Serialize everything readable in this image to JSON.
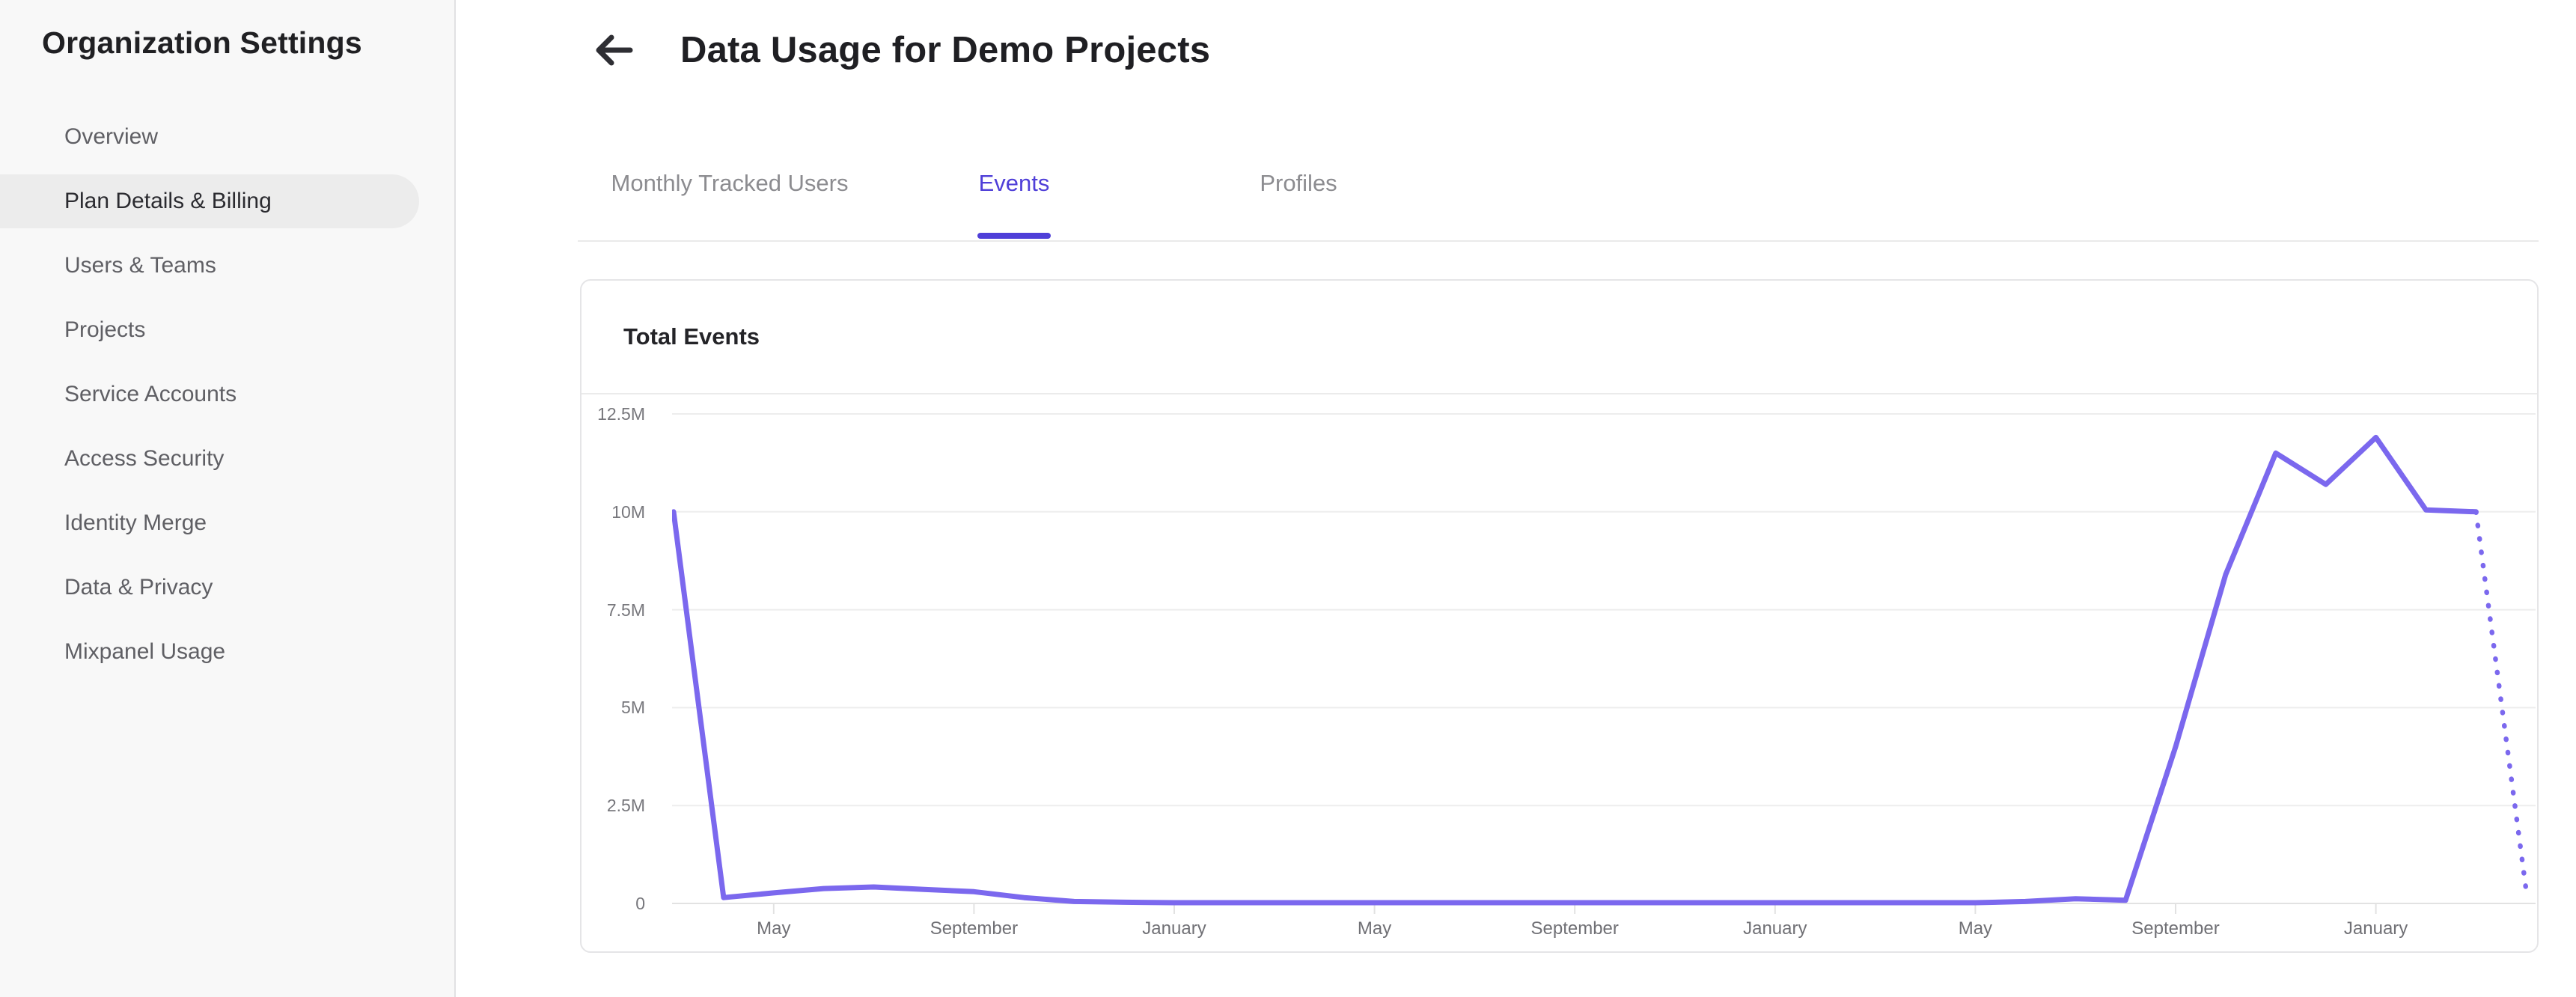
{
  "sidebar": {
    "title": "Organization Settings",
    "items": [
      {
        "label": "Overview",
        "active": false
      },
      {
        "label": "Plan Details & Billing",
        "active": true
      },
      {
        "label": "Users & Teams",
        "active": false
      },
      {
        "label": "Projects",
        "active": false
      },
      {
        "label": "Service Accounts",
        "active": false
      },
      {
        "label": "Access Security",
        "active": false
      },
      {
        "label": "Identity Merge",
        "active": false
      },
      {
        "label": "Data & Privacy",
        "active": false
      },
      {
        "label": "Mixpanel Usage",
        "active": false
      }
    ]
  },
  "header": {
    "title": "Data Usage for Demo Projects",
    "back_icon": "left-arrow"
  },
  "tabs": [
    {
      "label": "Monthly Tracked Users",
      "active": false
    },
    {
      "label": "Events",
      "active": true
    },
    {
      "label": "Profiles",
      "active": false
    }
  ],
  "chart_card": {
    "title": "Total Events"
  },
  "chart_data": {
    "type": "line",
    "title": "Total Events",
    "legend": "none",
    "grid": "horizontal",
    "series_name": "Total Events",
    "y_axis": {
      "tick_labels": [
        "12.5M",
        "10M",
        "7.5M",
        "5M",
        "2.5M",
        "0"
      ],
      "tick_step_millions": 2.5,
      "max_millions": 12.5,
      "min_millions": 0
    },
    "x_axis": {
      "tick_labels": [
        "May",
        "September",
        "January",
        "May",
        "September",
        "January",
        "May",
        "September",
        "January"
      ],
      "tick_month_indices": [
        2,
        6,
        10,
        14,
        18,
        22,
        26,
        30,
        34
      ],
      "granularity": "monthly"
    },
    "values_millions": [
      10,
      0.15,
      0.27,
      0.38,
      0.42,
      0.36,
      0.3,
      0.15,
      0.05,
      0.03,
      0.02,
      0.02,
      0.02,
      0.02,
      0.02,
      0.02,
      0.02,
      0.02,
      0.02,
      0.02,
      0.02,
      0.02,
      0.02,
      0.02,
      0.02,
      0.02,
      0.02,
      0.05,
      0.12,
      0.08,
      4.0,
      8.4,
      11.5,
      10.7,
      11.9,
      10.05,
      10.0,
      0.35
    ],
    "projected_dashed_from_index": 36
  },
  "colors": {
    "accent": "#4F3FD8",
    "chart_line": "#7B68EE",
    "page_text": "#1F1F23",
    "sidebar_bg": "#F8F8F8",
    "active_pill_bg": "#ECECEC",
    "muted_text": "#8C8C90",
    "sidebar_item_text": "#5F5F64",
    "border": "#E5E5E7",
    "gridline": "#EDEDED",
    "axis_line": "#E2E2E2",
    "axis_text": "#77777C"
  }
}
